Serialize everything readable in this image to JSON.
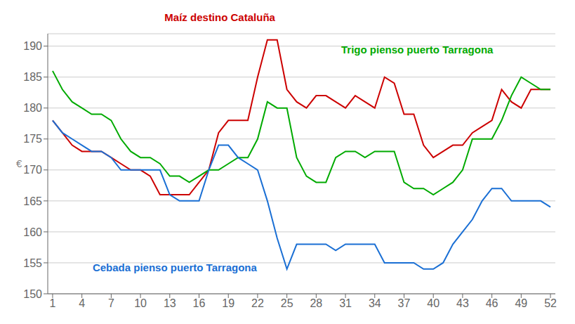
{
  "chart_data": {
    "type": "line",
    "y_label": "€",
    "x": [
      1,
      2,
      3,
      4,
      5,
      6,
      7,
      8,
      9,
      10,
      11,
      12,
      13,
      14,
      15,
      16,
      17,
      18,
      19,
      20,
      21,
      22,
      23,
      24,
      25,
      26,
      27,
      28,
      29,
      30,
      31,
      32,
      33,
      34,
      35,
      36,
      37,
      38,
      39,
      40,
      41,
      42,
      43,
      44,
      45,
      46,
      47,
      48,
      49,
      50,
      51,
      52
    ],
    "series": [
      {
        "name": "Maíz destino Cataluña",
        "color": "#cc0000",
        "values": [
          178,
          176,
          174,
          173,
          173,
          173,
          172,
          171,
          170,
          170,
          169,
          166,
          166,
          166,
          166,
          168,
          170,
          176,
          178,
          178,
          178,
          185,
          191,
          191,
          183,
          181,
          180,
          182,
          182,
          181,
          180,
          182,
          181,
          180,
          185,
          184,
          179,
          179,
          174,
          172,
          173,
          174,
          174,
          176,
          177,
          178,
          183,
          181,
          180,
          183,
          183,
          183
        ]
      },
      {
        "name": "Trigo pienso puerto Tarragona",
        "color": "#00aa00",
        "values": [
          186,
          183,
          181,
          180,
          179,
          179,
          178,
          175,
          173,
          172,
          172,
          171,
          169,
          169,
          168,
          169,
          170,
          170,
          171,
          172,
          172,
          175,
          181,
          180,
          180,
          172,
          169,
          168,
          168,
          172,
          173,
          173,
          172,
          173,
          173,
          173,
          168,
          167,
          167,
          166,
          167,
          168,
          170,
          175,
          175,
          175,
          178,
          182,
          185,
          184,
          183,
          183
        ]
      },
      {
        "name": "Cebada pienso puerto Tarragona",
        "color": "#1a6fd4",
        "values": [
          178,
          176,
          175,
          174,
          173,
          173,
          172,
          170,
          170,
          170,
          170,
          170,
          166,
          165,
          165,
          165,
          170,
          174,
          174,
          172,
          171,
          170,
          165,
          159,
          154,
          158,
          158,
          158,
          158,
          157,
          158,
          158,
          158,
          158,
          155,
          155,
          155,
          155,
          154,
          154,
          155,
          158,
          160,
          162,
          165,
          167,
          167,
          165,
          165,
          165,
          165,
          164
        ]
      }
    ],
    "xlim": [
      0.5,
      52.5
    ],
    "ylim": [
      150,
      192
    ],
    "xticks": [
      1,
      4,
      7,
      10,
      13,
      16,
      19,
      22,
      25,
      28,
      31,
      34,
      37,
      40,
      43,
      46,
      49,
      52
    ],
    "yticks": [
      150,
      155,
      160,
      165,
      170,
      175,
      180,
      185,
      190
    ],
    "grid": true
  }
}
